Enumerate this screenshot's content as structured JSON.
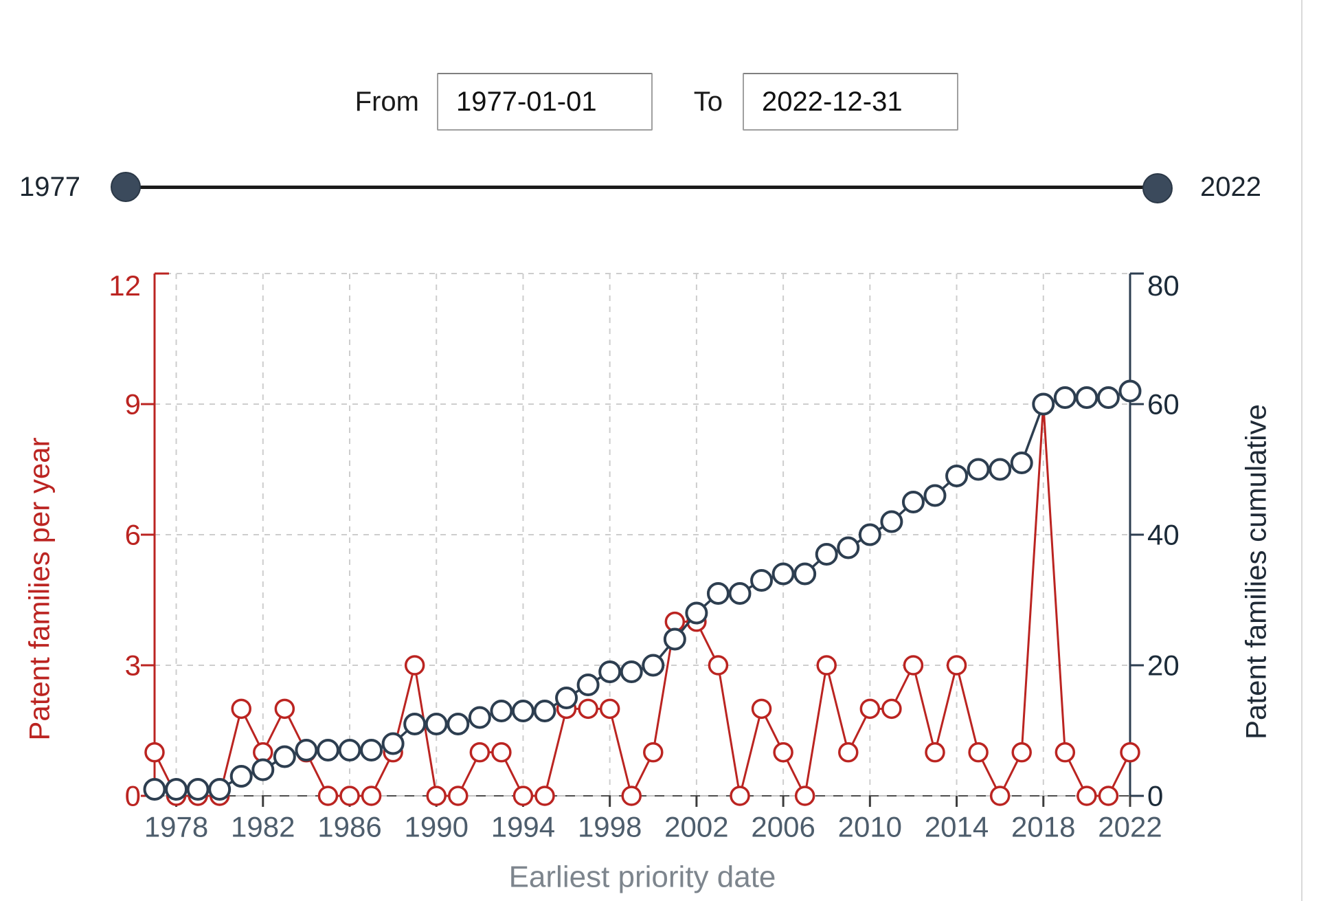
{
  "controls": {
    "from_label": "From",
    "from_value": "1977-01-01",
    "to_label": "To",
    "to_value": "2022-12-31"
  },
  "slider": {
    "min_label": "1977",
    "max_label": "2022"
  },
  "chart_data": {
    "type": "line",
    "xlabel": "Earliest priority date",
    "ylabel_left": "Patent families per year",
    "ylabel_right": "Patent families cumulative",
    "x_range": [
      1977,
      2022
    ],
    "x_ticks": [
      1978,
      1982,
      1986,
      1990,
      1994,
      1998,
      2002,
      2006,
      2010,
      2014,
      2018,
      2022
    ],
    "y_left_range": [
      0,
      12
    ],
    "y_left_ticks": [
      0,
      3,
      6,
      9,
      12
    ],
    "y_right_range": [
      0,
      80
    ],
    "y_right_ticks": [
      0,
      20,
      40,
      60,
      80
    ],
    "grid": true,
    "legend_position": "none",
    "years": [
      1977,
      1978,
      1979,
      1980,
      1981,
      1982,
      1983,
      1984,
      1985,
      1986,
      1987,
      1988,
      1989,
      1990,
      1991,
      1992,
      1993,
      1994,
      1995,
      1996,
      1997,
      1998,
      1999,
      2000,
      2001,
      2002,
      2003,
      2004,
      2005,
      2006,
      2007,
      2008,
      2009,
      2010,
      2011,
      2012,
      2013,
      2014,
      2015,
      2016,
      2017,
      2018,
      2019,
      2020,
      2021,
      2022
    ],
    "series": [
      {
        "name": "Patent families per year",
        "axis": "left",
        "marker": "open-circle",
        "values": [
          1,
          0,
          0,
          0,
          2,
          1,
          2,
          1,
          0,
          0,
          0,
          1,
          3,
          0,
          0,
          1,
          1,
          0,
          0,
          2,
          2,
          2,
          0,
          1,
          4,
          4,
          3,
          0,
          2,
          1,
          0,
          3,
          1,
          2,
          2,
          3,
          1,
          3,
          1,
          0,
          1,
          9,
          1,
          0,
          0,
          1
        ]
      },
      {
        "name": "Patent families cumulative",
        "axis": "right",
        "marker": "open-circle",
        "values": [
          1,
          1,
          1,
          1,
          3,
          4,
          6,
          7,
          7,
          7,
          7,
          8,
          11,
          11,
          11,
          12,
          13,
          13,
          13,
          15,
          17,
          19,
          19,
          20,
          24,
          28,
          31,
          31,
          33,
          34,
          34,
          37,
          38,
          40,
          42,
          45,
          46,
          49,
          50,
          50,
          51,
          60,
          61,
          61,
          61,
          62
        ]
      }
    ],
    "styles": {
      "red": "#bb2421",
      "navy": "#2d3e50",
      "grid_color": "#cdcdcd",
      "baseline_dash_color": "#4d4d4d",
      "x_tick_label_color": "#4d5d6c",
      "right_tick_label_color": "#1c2b39",
      "x_title_color": "#7d858d",
      "marker_fill": "#ffffff"
    }
  }
}
